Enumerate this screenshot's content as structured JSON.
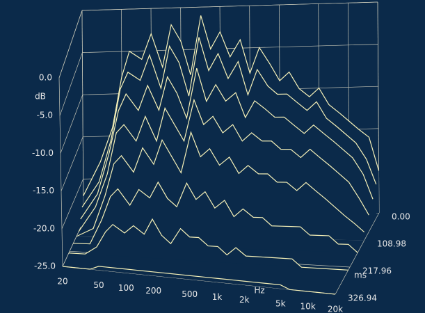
{
  "chart_data": {
    "type": "waterfall",
    "x_label": "Hz",
    "y_label": "dB",
    "z_label": "ms",
    "xscale": "log",
    "grid": true,
    "line_color": "#f6f1b8",
    "background": "#0b2a4a",
    "xlim": [
      20,
      20000
    ],
    "ylim": [
      -25,
      0
    ],
    "zlim": [
      0,
      326.94
    ],
    "xticks": [
      20,
      50,
      100,
      200,
      500,
      {
        "value": 1000,
        "label": "1k"
      },
      {
        "value": 2000,
        "label": "2k"
      },
      {
        "value": 5000,
        "label": "5k"
      },
      {
        "value": 10000,
        "label": "10k"
      },
      {
        "value": 20000,
        "label": "20k"
      }
    ],
    "yticks": [
      {
        "value": 0,
        "label": "0.0"
      },
      {
        "value": -5,
        "label": "-5.0"
      },
      {
        "value": -10,
        "label": "-10.0"
      },
      {
        "value": -15,
        "label": "-15.0"
      },
      {
        "value": -20,
        "label": "-20.0"
      },
      {
        "value": -25,
        "label": "-25.0"
      }
    ],
    "zticks": [
      {
        "value": 0,
        "label": "0.00"
      },
      {
        "value": 108.98,
        "label": "108.98"
      },
      {
        "value": 217.96,
        "label": "217.96"
      },
      326.94
    ],
    "x": [
      20,
      30,
      40,
      50,
      60,
      80,
      100,
      130,
      160,
      200,
      250,
      320,
      400,
      500,
      630,
      800,
      1000,
      1250,
      1600,
      2000,
      2500,
      3150,
      4000,
      5000,
      6300,
      8000,
      10000,
      12500,
      16000,
      20000
    ],
    "z": [
      0,
      20,
      45,
      75,
      110,
      160,
      230,
      326.94
    ],
    "series": [
      {
        "values": [
          -22,
          -18,
          -14,
          -8,
          -5,
          -6,
          -3,
          -7,
          -2,
          -4,
          -8,
          -1,
          -5,
          -3,
          -6,
          -4,
          -8,
          -5,
          -7,
          -9,
          -8,
          -10,
          -11,
          -10,
          -12,
          -13,
          -14,
          -15,
          -16,
          -20
        ]
      },
      {
        "values": [
          -23,
          -20,
          -15,
          -9,
          -7,
          -8,
          -5,
          -9,
          -4,
          -6,
          -10,
          -3,
          -7,
          -5,
          -8,
          -6,
          -10,
          -7,
          -9,
          -10,
          -10,
          -11,
          -12,
          -11,
          -13,
          -14,
          -15,
          -16,
          -18,
          -21
        ]
      },
      {
        "values": [
          -24,
          -21,
          -16,
          -11,
          -9,
          -11,
          -8,
          -11,
          -7,
          -9,
          -12,
          -6,
          -10,
          -8,
          -10,
          -9,
          -12,
          -10,
          -11,
          -12,
          -12,
          -13,
          -14,
          -13,
          -14,
          -15,
          -16,
          -17,
          -19,
          -22
        ]
      },
      {
        "values": [
          -25,
          -22,
          -18,
          -13,
          -12,
          -14,
          -11,
          -14,
          -10,
          -12,
          -14,
          -9,
          -12,
          -11,
          -13,
          -12,
          -14,
          -13,
          -14,
          -14,
          -15,
          -15,
          -16,
          -15,
          -16,
          -17,
          -18,
          -19,
          -21,
          -23
        ]
      },
      {
        "values": [
          -25,
          -24,
          -20,
          -16,
          -15,
          -17,
          -14,
          -16,
          -13,
          -15,
          -17,
          -12,
          -15,
          -14,
          -16,
          -15,
          -17,
          -16,
          -17,
          -17,
          -18,
          -18,
          -19,
          -18,
          -19,
          -20,
          -21,
          -22,
          -23,
          -24
        ]
      },
      {
        "values": [
          -25,
          -25,
          -22,
          -19,
          -18,
          -20,
          -18,
          -19,
          -17,
          -19,
          -20,
          -17,
          -19,
          -18,
          -20,
          -19,
          -21,
          -20,
          -21,
          -21,
          -22,
          -22,
          -22,
          -22,
          -23,
          -23,
          -23,
          -24,
          -24,
          -25
        ]
      },
      {
        "values": [
          -25,
          -25,
          -24,
          -22,
          -21,
          -22,
          -21,
          -22,
          -20,
          -22,
          -23,
          -21,
          -22,
          -22,
          -23,
          -23,
          -24,
          -23,
          -24,
          -24,
          -24,
          -24,
          -24,
          -24,
          -25,
          -25,
          -25,
          -25,
          -25,
          -25
        ]
      },
      {
        "values": [
          -25,
          -25,
          -25,
          -24.5,
          -24.5,
          -24.5,
          -24.5,
          -24.5,
          -24.5,
          -24.5,
          -24.5,
          -24.5,
          -24.5,
          -24.5,
          -24.5,
          -24.5,
          -24.5,
          -24.5,
          -24.5,
          -24.5,
          -24.5,
          -24.5,
          -24.5,
          -24.5,
          -25,
          -25,
          -25,
          -25,
          -25,
          -25
        ]
      }
    ]
  }
}
